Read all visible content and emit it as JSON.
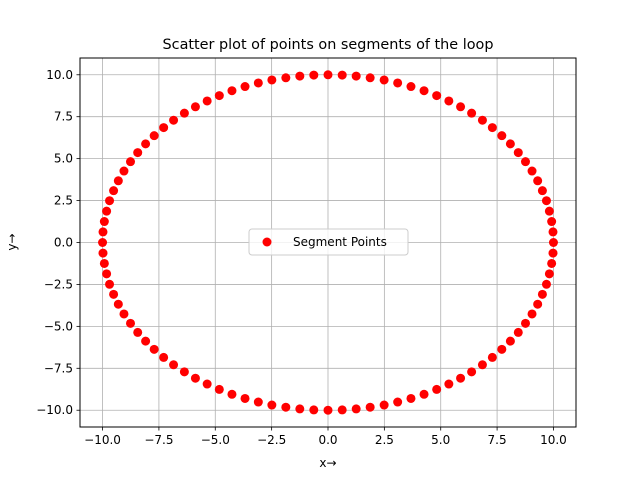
{
  "chart_data": {
    "type": "scatter",
    "title": "Scatter plot of points on segments of the loop",
    "xlabel": "x→",
    "ylabel": "y→",
    "xlim": [
      -11,
      11
    ],
    "ylim": [
      -11,
      11
    ],
    "grid": true,
    "legend_position": "center",
    "x_ticks": [
      -10.0,
      -7.5,
      -5.0,
      -2.5,
      0.0,
      2.5,
      5.0,
      7.5,
      10.0
    ],
    "x_tick_labels": [
      "−10.0",
      "−7.5",
      "−5.0",
      "−2.5",
      "0.0",
      "2.5",
      "5.0",
      "7.5",
      "10.0"
    ],
    "y_ticks": [
      -10.0,
      -7.5,
      -5.0,
      -2.5,
      0.0,
      2.5,
      5.0,
      7.5,
      10.0
    ],
    "y_tick_labels": [
      "−10.0",
      "−7.5",
      "−5.0",
      "−2.5",
      "0.0",
      "2.5",
      "5.0",
      "7.5",
      "10.0"
    ],
    "series": [
      {
        "name": "Segment Points",
        "color": "#ff0000",
        "marker": "circle",
        "points": [
          [
            10.0,
            0.0
          ],
          [
            9.98,
            0.63
          ],
          [
            9.92,
            1.25
          ],
          [
            9.82,
            1.87
          ],
          [
            9.69,
            2.49
          ],
          [
            9.51,
            3.09
          ],
          [
            9.3,
            3.68
          ],
          [
            9.05,
            4.26
          ],
          [
            8.76,
            4.82
          ],
          [
            8.44,
            5.36
          ],
          [
            8.09,
            5.88
          ],
          [
            7.71,
            6.37
          ],
          [
            7.29,
            6.85
          ],
          [
            6.85,
            7.29
          ],
          [
            6.37,
            7.71
          ],
          [
            5.88,
            8.09
          ],
          [
            5.36,
            8.44
          ],
          [
            4.82,
            8.76
          ],
          [
            4.26,
            9.05
          ],
          [
            3.68,
            9.3
          ],
          [
            3.09,
            9.51
          ],
          [
            2.49,
            9.69
          ],
          [
            1.87,
            9.82
          ],
          [
            1.25,
            9.92
          ],
          [
            0.63,
            9.98
          ],
          [
            0.0,
            10.0
          ],
          [
            -0.63,
            9.98
          ],
          [
            -1.25,
            9.92
          ],
          [
            -1.87,
            9.82
          ],
          [
            -2.49,
            9.69
          ],
          [
            -3.09,
            9.51
          ],
          [
            -3.68,
            9.3
          ],
          [
            -4.26,
            9.05
          ],
          [
            -4.82,
            8.76
          ],
          [
            -5.36,
            8.44
          ],
          [
            -5.88,
            8.09
          ],
          [
            -6.37,
            7.71
          ],
          [
            -6.85,
            7.29
          ],
          [
            -7.29,
            6.85
          ],
          [
            -7.71,
            6.37
          ],
          [
            -8.09,
            5.88
          ],
          [
            -8.44,
            5.36
          ],
          [
            -8.76,
            4.82
          ],
          [
            -9.05,
            4.26
          ],
          [
            -9.3,
            3.68
          ],
          [
            -9.51,
            3.09
          ],
          [
            -9.69,
            2.49
          ],
          [
            -9.82,
            1.87
          ],
          [
            -9.92,
            1.25
          ],
          [
            -9.98,
            0.63
          ],
          [
            -10.0,
            0.0
          ],
          [
            -9.98,
            -0.63
          ],
          [
            -9.92,
            -1.25
          ],
          [
            -9.82,
            -1.87
          ],
          [
            -9.69,
            -2.49
          ],
          [
            -9.51,
            -3.09
          ],
          [
            -9.3,
            -3.68
          ],
          [
            -9.05,
            -4.26
          ],
          [
            -8.76,
            -4.82
          ],
          [
            -8.44,
            -5.36
          ],
          [
            -8.09,
            -5.88
          ],
          [
            -7.71,
            -6.37
          ],
          [
            -7.29,
            -6.85
          ],
          [
            -6.85,
            -7.29
          ],
          [
            -6.37,
            -7.71
          ],
          [
            -5.88,
            -8.09
          ],
          [
            -5.36,
            -8.44
          ],
          [
            -4.82,
            -8.76
          ],
          [
            -4.26,
            -9.05
          ],
          [
            -3.68,
            -9.3
          ],
          [
            -3.09,
            -9.51
          ],
          [
            -2.49,
            -9.69
          ],
          [
            -1.87,
            -9.82
          ],
          [
            -1.25,
            -9.92
          ],
          [
            -0.63,
            -9.98
          ],
          [
            0.0,
            -10.0
          ],
          [
            0.63,
            -9.98
          ],
          [
            1.25,
            -9.92
          ],
          [
            1.87,
            -9.82
          ],
          [
            2.49,
            -9.69
          ],
          [
            3.09,
            -9.51
          ],
          [
            3.68,
            -9.3
          ],
          [
            4.26,
            -9.05
          ],
          [
            4.82,
            -8.76
          ],
          [
            5.36,
            -8.44
          ],
          [
            5.88,
            -8.09
          ],
          [
            6.37,
            -7.71
          ],
          [
            6.85,
            -7.29
          ],
          [
            7.29,
            -6.85
          ],
          [
            7.71,
            -6.37
          ],
          [
            8.09,
            -5.88
          ],
          [
            8.44,
            -5.36
          ],
          [
            8.76,
            -4.82
          ],
          [
            9.05,
            -4.26
          ],
          [
            9.3,
            -3.68
          ],
          [
            9.51,
            -3.09
          ],
          [
            9.69,
            -2.49
          ],
          [
            9.82,
            -1.87
          ],
          [
            9.92,
            -1.25
          ],
          [
            9.98,
            -0.63
          ]
        ]
      }
    ]
  }
}
